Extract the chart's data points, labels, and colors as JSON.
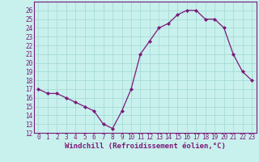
{
  "x": [
    0,
    1,
    2,
    3,
    4,
    5,
    6,
    7,
    8,
    9,
    10,
    11,
    12,
    13,
    14,
    15,
    16,
    17,
    18,
    19,
    20,
    21,
    22,
    23
  ],
  "y": [
    17,
    16.5,
    16.5,
    16,
    15.5,
    15,
    14.5,
    13,
    12.5,
    14.5,
    17,
    21,
    22.5,
    24,
    24.5,
    25.5,
    26,
    26,
    25,
    25,
    24,
    21,
    19,
    18
  ],
  "line_color": "#7b1a7b",
  "marker_color": "#7b1a7b",
  "bg_color": "#c8f0ec",
  "grid_color": "#a0d8d4",
  "axis_color": "#7b1a7b",
  "spine_color": "#7b1a7b",
  "title": "Windchill (Refroidissement éolien,°C)",
  "ylim": [
    12,
    27
  ],
  "xlim": [
    -0.5,
    23.5
  ],
  "yticks": [
    12,
    13,
    14,
    15,
    16,
    17,
    18,
    19,
    20,
    21,
    22,
    23,
    24,
    25,
    26
  ],
  "xticks": [
    0,
    1,
    2,
    3,
    4,
    5,
    6,
    7,
    8,
    9,
    10,
    11,
    12,
    13,
    14,
    15,
    16,
    17,
    18,
    19,
    20,
    21,
    22,
    23
  ],
  "tick_fontsize": 5.5,
  "xlabel_fontsize": 6.5,
  "linewidth": 0.9,
  "markersize": 2.0
}
